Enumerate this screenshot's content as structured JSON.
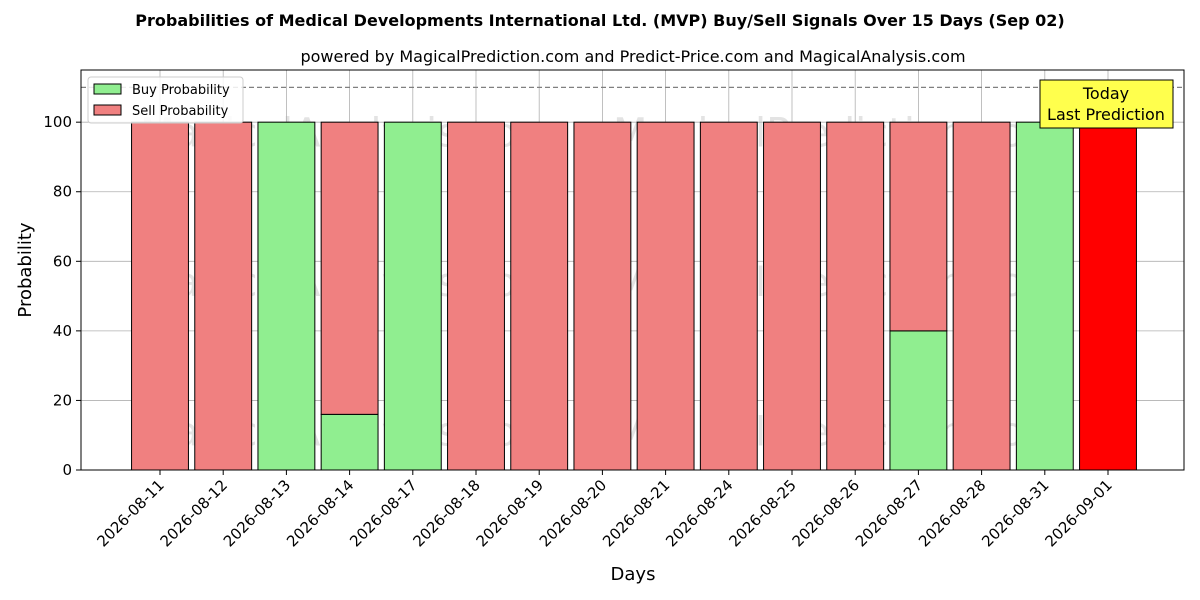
{
  "chart_data": {
    "type": "bar",
    "stacked": true,
    "title": "Probabilities of Medical Developments International Ltd. (MVP) Buy/Sell Signals Over 15 Days (Sep 02)",
    "subtitle": "powered by MagicalPrediction.com and Predict-Price.com and MagicalAnalysis.com",
    "xlabel": "Days",
    "ylabel": "Probability",
    "ylim": [
      0,
      115
    ],
    "yticks": [
      0,
      20,
      40,
      60,
      80,
      100
    ],
    "grid": true,
    "legend_position": "top-left",
    "reference_line": 110,
    "categories": [
      "2026-08-11",
      "2026-08-12",
      "2026-08-13",
      "2026-08-14",
      "2026-08-17",
      "2026-08-18",
      "2026-08-19",
      "2026-08-20",
      "2026-08-21",
      "2026-08-24",
      "2026-08-25",
      "2026-08-26",
      "2026-08-27",
      "2026-08-28",
      "2026-08-31",
      "2026-09-01"
    ],
    "series": [
      {
        "name": "Buy Probability",
        "color": "#90ee90",
        "values": [
          0,
          0,
          100,
          16,
          100,
          0,
          0,
          0,
          0,
          0,
          0,
          0,
          40,
          0,
          100,
          0
        ]
      },
      {
        "name": "Sell Probability",
        "color": "#f08080",
        "values": [
          100,
          100,
          0,
          84,
          0,
          100,
          100,
          100,
          100,
          100,
          100,
          100,
          60,
          100,
          0,
          100
        ]
      }
    ],
    "highlight": {
      "index": 15,
      "color": "#ff0000"
    },
    "annotation": {
      "lines": [
        "Today",
        "Last Prediction"
      ],
      "background": "#ffff4d"
    },
    "watermarks": [
      "MagicalAnalysis.com",
      "MagicalPrediction.com"
    ]
  }
}
